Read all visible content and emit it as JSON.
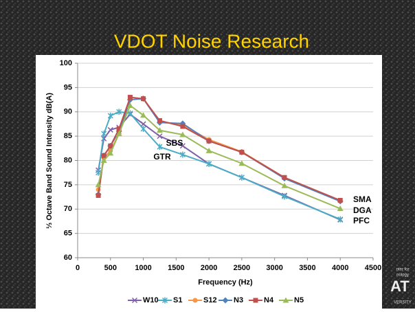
{
  "chart_data": {
    "type": "line",
    "title": "VDOT Noise Research",
    "x_label": "Frequency (Hz)",
    "y_label": "⅓ Octave Band Sound Intensity dB(A)",
    "x": [
      315,
      400,
      500,
      630,
      800,
      1000,
      1250,
      1600,
      2000,
      2500,
      3150,
      4000
    ],
    "xlim": [
      0,
      4500
    ],
    "xticks": [
      0,
      500,
      1000,
      1500,
      2000,
      2500,
      3000,
      3500,
      4000,
      4500
    ],
    "ylim": [
      60,
      100
    ],
    "yticks": [
      60,
      65,
      70,
      75,
      80,
      85,
      90,
      95,
      100
    ],
    "grid": true,
    "legend": "bottom",
    "series": [
      {
        "name": "W10",
        "color": "#7f5fa8",
        "marker": "x",
        "values": [
          78,
          84.5,
          86.3,
          86.8,
          89.5,
          87.5,
          85,
          83,
          79.3,
          76.5,
          72.8,
          67.8
        ]
      },
      {
        "name": "S1",
        "color": "#4bacc6",
        "marker": "star",
        "values": [
          77.5,
          85.5,
          89.2,
          90,
          89.7,
          86.5,
          82.8,
          81.2,
          79.3,
          76.5,
          72.6,
          67.9
        ]
      },
      {
        "name": "S12",
        "color": "#f79646",
        "marker": "circle",
        "values": [
          74,
          80.5,
          82,
          85.5,
          92.5,
          92.8,
          88,
          87.3,
          84.3,
          81.8,
          76.5,
          71.7
        ]
      },
      {
        "name": "N3",
        "color": "#4f81bd",
        "marker": "diamond",
        "values": [
          73,
          81,
          83,
          86,
          92.5,
          92.7,
          87.8,
          87.6,
          84,
          81.7,
          76.3,
          71.6
        ]
      },
      {
        "name": "N4",
        "color": "#c0504d",
        "marker": "square",
        "values": [
          72.8,
          81,
          83,
          86.5,
          93,
          92.7,
          88.2,
          87,
          84,
          81.7,
          76.5,
          71.8
        ]
      },
      {
        "name": "N5",
        "color": "#9bbb59",
        "marker": "triangle",
        "values": [
          75,
          80,
          81.5,
          85.5,
          91.3,
          89.3,
          86.2,
          85.3,
          82,
          79.4,
          74.8,
          70.1
        ]
      }
    ],
    "annotations": [
      "SBS",
      "GTR",
      "SMA",
      "DGA",
      "PFC"
    ]
  },
  "logo": [
    "nter for",
    "nology",
    "AT",
    "VERSITY"
  ]
}
